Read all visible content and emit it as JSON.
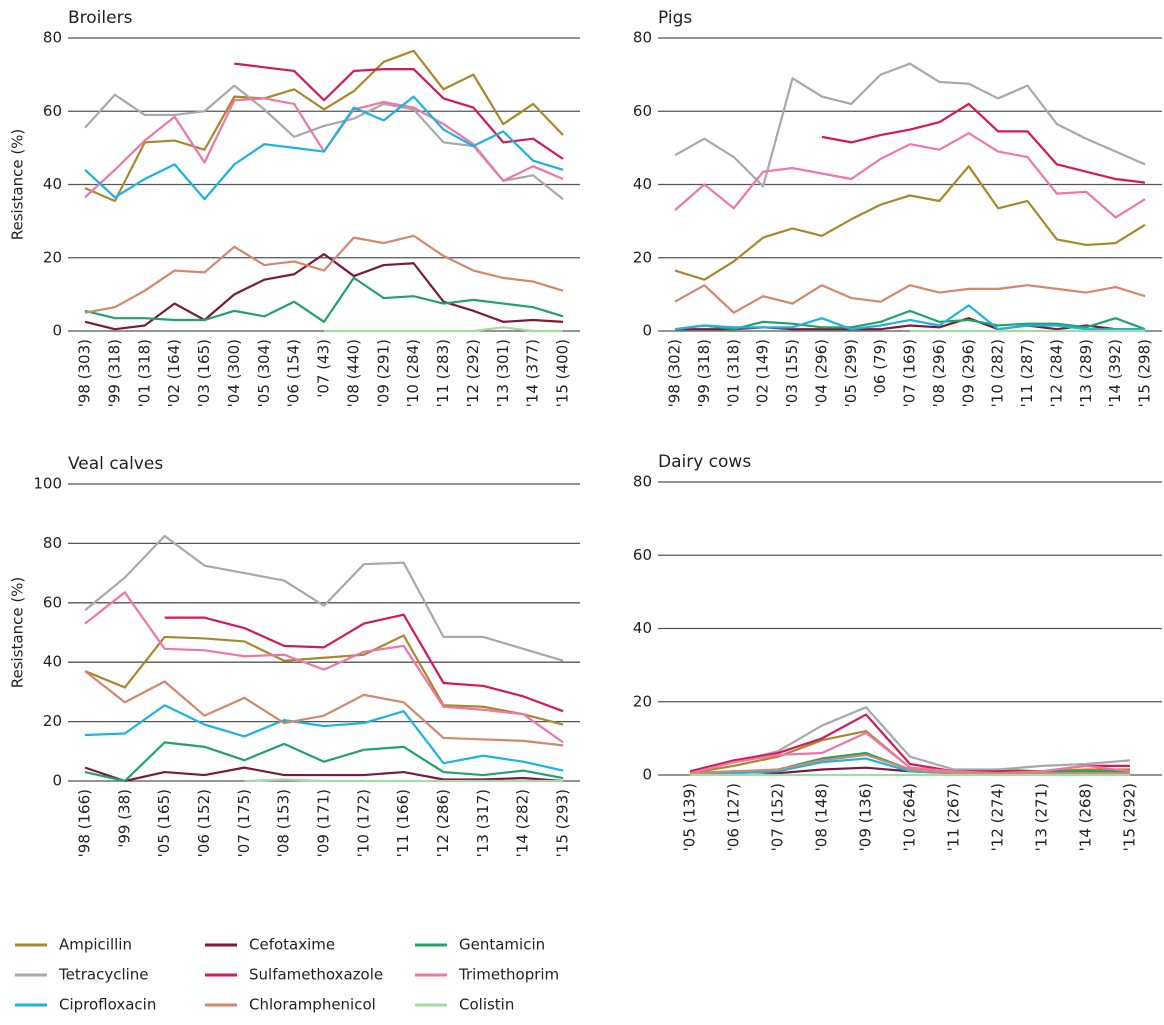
{
  "legend": [
    {
      "name": "Ampicillin",
      "color": "#a7892a"
    },
    {
      "name": "Cefotaxime",
      "color": "#7b1a3a"
    },
    {
      "name": "Gentamicin",
      "color": "#1fa36a"
    },
    {
      "name": "Tetracycline",
      "color": "#a8a8a8"
    },
    {
      "name": "Sulfamethoxazole",
      "color": "#d6175a"
    },
    {
      "name": "Trimethoprim",
      "color": "#f075a8"
    },
    {
      "name": "Ciprofloxacin",
      "color": "#1bb3e0"
    },
    {
      "name": "Chloramphenicol",
      "color": "#d4876f"
    },
    {
      "name": "Colistin",
      "color": "#a8d8a8"
    }
  ],
  "chart_data": [
    {
      "type": "line",
      "title": "Broilers",
      "y_label": "Resistance (%)",
      "grid": true,
      "ylim": [
        0,
        80
      ],
      "yticks": [
        0,
        20,
        40,
        60,
        80
      ],
      "categories": [
        "'98 (303)",
        "'99 (318)",
        "'01 (318)",
        "'02 (164)",
        "'03 (165)",
        "'04 (300)",
        "'05 (304)",
        "'06 (154)",
        "'07 (43)",
        "'08 (440)",
        "'09 (291)",
        "'10 (284)",
        "'11 (283)",
        "'12 (292)",
        "'13 (301)",
        "'14 (377)",
        "'15 (400)"
      ],
      "series": [
        {
          "values": [
            39,
            35.5,
            51.5,
            52,
            49.5,
            64,
            63.5,
            66,
            60.5,
            65.5,
            73.5,
            76.5,
            66,
            70,
            56.5,
            62,
            53.5
          ]
        },
        {
          "values": [
            2.5,
            0.5,
            1.5,
            7.5,
            3,
            10,
            14,
            15.5,
            21,
            15,
            18,
            18.5,
            8,
            5.5,
            2.5,
            3,
            2.5
          ]
        },
        {
          "values": [
            5.5,
            3.5,
            3.5,
            3,
            3,
            5.5,
            4,
            8,
            2.5,
            14.5,
            9,
            9.5,
            7.5,
            8.5,
            7.5,
            6.5,
            4
          ]
        },
        {
          "values": [
            55.5,
            64.5,
            59,
            59,
            60,
            67,
            60.5,
            53,
            56,
            58,
            62,
            60.5,
            51.5,
            50.5,
            41,
            42.5,
            36
          ]
        },
        {
          "values": [
            null,
            null,
            null,
            null,
            null,
            73,
            72,
            71,
            63,
            71,
            71.5,
            71.5,
            63.5,
            61,
            51.5,
            52.5,
            47
          ]
        },
        {
          "values": [
            36.5,
            44,
            52,
            58.5,
            46,
            63,
            63.5,
            62,
            49,
            60.5,
            62.5,
            61,
            56.5,
            51,
            41,
            45,
            41.5
          ]
        },
        {
          "values": [
            44,
            36.5,
            41.5,
            45.5,
            36,
            45.5,
            51,
            50,
            49,
            61,
            57.5,
            64,
            55,
            50.5,
            54.5,
            46.5,
            44
          ]
        },
        {
          "values": [
            5,
            6.5,
            11,
            16.5,
            16,
            23,
            18,
            19,
            16.5,
            25.5,
            24,
            26,
            20.5,
            16.5,
            14.5,
            13.5,
            11
          ]
        },
        {
          "values": [
            null,
            null,
            null,
            null,
            null,
            null,
            null,
            null,
            0,
            0,
            0,
            0,
            0,
            0,
            1,
            0,
            0
          ]
        }
      ]
    },
    {
      "type": "line",
      "title": "Pigs",
      "grid": true,
      "ylim": [
        0,
        80
      ],
      "yticks": [
        0,
        20,
        40,
        60,
        80
      ],
      "categories": [
        "'98 (302)",
        "'99 (318)",
        "'01 (318)",
        "'02 (149)",
        "'03 (155)",
        "'04 (296)",
        "'05 (299)",
        "'06 (79)",
        "'07 (169)",
        "'08 (296)",
        "'09 (296)",
        "'10 (282)",
        "'11 (287)",
        "'12 (284)",
        "'13 (289)",
        "'14 (392)",
        "'15 (298)"
      ],
      "series": [
        {
          "values": [
            16.5,
            14,
            19,
            25.5,
            28,
            26,
            30.5,
            34.5,
            37,
            35.5,
            45,
            33.5,
            35.5,
            25,
            23.5,
            24,
            29
          ]
        },
        {
          "values": [
            0.5,
            0.5,
            0.5,
            1,
            0.5,
            0.5,
            0.5,
            0.5,
            1.5,
            1,
            3.5,
            0.5,
            1.5,
            0.5,
            1.5,
            0.5,
            0.5
          ]
        },
        {
          "values": [
            0.5,
            1.5,
            0.5,
            2.5,
            2,
            1,
            1,
            2.5,
            5.5,
            2.5,
            3,
            1.5,
            2,
            2,
            1,
            3.5,
            0.5
          ]
        },
        {
          "values": [
            48,
            52.5,
            47.5,
            39.5,
            69,
            64,
            62,
            70,
            73,
            68,
            67.5,
            63.5,
            67,
            56.5,
            52.5,
            49,
            45.5
          ]
        },
        {
          "values": [
            null,
            null,
            null,
            null,
            null,
            53,
            51.5,
            53.5,
            55,
            57,
            62,
            54.5,
            54.5,
            45.5,
            43.5,
            41.5,
            40.5
          ]
        },
        {
          "values": [
            33,
            40,
            33.5,
            43.5,
            44.5,
            43,
            41.5,
            47,
            51,
            49.5,
            54,
            49,
            47.5,
            37.5,
            38,
            31,
            36
          ]
        },
        {
          "values": [
            0.5,
            1.5,
            1,
            1,
            1,
            3.5,
            0.5,
            1.5,
            3,
            1.5,
            7,
            0.5,
            1.5,
            1.5,
            0.5,
            0.5,
            0.5
          ]
        },
        {
          "values": [
            8,
            12.5,
            5,
            9.5,
            7.5,
            12.5,
            9,
            8,
            12.5,
            10.5,
            11.5,
            11.5,
            12.5,
            11.5,
            10.5,
            12,
            9.5
          ]
        },
        {
          "values": [
            null,
            null,
            null,
            null,
            null,
            null,
            null,
            null,
            0,
            0,
            0,
            0,
            0,
            0,
            0,
            0,
            0
          ]
        }
      ]
    },
    {
      "type": "line",
      "title": "Veal calves",
      "y_label": "Resistance (%)",
      "grid": true,
      "ylim": [
        0,
        100
      ],
      "yticks": [
        0,
        20,
        40,
        60,
        80,
        100
      ],
      "categories": [
        "'98 (166)",
        "'99 (38)",
        "'05 (165)",
        "'06 (152)",
        "'07 (175)",
        "'08 (153)",
        "'09 (171)",
        "'10 (172)",
        "'11 (166)",
        "'12 (286)",
        "'13 (317)",
        "'14 (282)",
        "'15 (293)"
      ],
      "series": [
        {
          "values": [
            37,
            31.5,
            48.5,
            48,
            47,
            40.5,
            41.5,
            42.5,
            49,
            25.5,
            25,
            22.5,
            19
          ]
        },
        {
          "values": [
            4.5,
            0,
            3,
            2,
            4.5,
            2,
            2,
            2,
            3,
            0.5,
            0.5,
            1,
            0
          ]
        },
        {
          "values": [
            3,
            0,
            13,
            11.5,
            7,
            12.5,
            6.5,
            10.5,
            11.5,
            3,
            2,
            3.5,
            1
          ]
        },
        {
          "values": [
            57.5,
            68.5,
            82.5,
            72.5,
            70,
            67.5,
            59,
            73,
            73.5,
            48.5,
            48.5,
            44.5,
            40.5
          ]
        },
        {
          "values": [
            null,
            null,
            55,
            55,
            51.5,
            45.5,
            45,
            53,
            56,
            33,
            32,
            28.5,
            23.5
          ]
        },
        {
          "values": [
            53,
            63.5,
            44.5,
            44,
            42,
            42.5,
            37.5,
            43.5,
            45.5,
            25,
            24,
            22.5,
            13
          ]
        },
        {
          "values": [
            15.5,
            16,
            25.5,
            19,
            15,
            20.5,
            18.5,
            19.5,
            23.5,
            6,
            8.5,
            6.5,
            3.5
          ]
        },
        {
          "values": [
            37,
            26.5,
            33.5,
            22,
            28,
            19.5,
            22,
            29,
            26.5,
            14.5,
            14,
            13.5,
            12
          ]
        },
        {
          "values": [
            null,
            null,
            null,
            null,
            0,
            0.5,
            0,
            0,
            0,
            0,
            0,
            0,
            0
          ]
        }
      ]
    },
    {
      "type": "line",
      "title": "Dairy cows",
      "grid": true,
      "ylim": [
        0,
        80
      ],
      "yticks": [
        0,
        20,
        40,
        60,
        80
      ],
      "categories": [
        "'05 (139)",
        "'06 (127)",
        "'07 (152)",
        "'08 (148)",
        "'09 (136)",
        "'10 (264)",
        "'11 (267)",
        "'12 (274)",
        "'13 (271)",
        "'14 (268)",
        "'15 (292)"
      ],
      "series": [
        {
          "values": [
            0.5,
            2.5,
            5,
            9.5,
            12,
            2,
            1,
            1.5,
            1,
            1.5,
            1.5
          ]
        },
        {
          "values": [
            0.5,
            1,
            0.5,
            1.5,
            2,
            1,
            0.5,
            0.5,
            0.5,
            0.5,
            0.5
          ]
        },
        {
          "values": [
            0.5,
            0.5,
            1.5,
            4.5,
            6,
            1.5,
            0.5,
            1,
            1,
            1,
            1
          ]
        },
        {
          "values": [
            1,
            3.5,
            6.5,
            13.5,
            18.5,
            5,
            1.5,
            1.5,
            2.5,
            3,
            4
          ]
        },
        {
          "values": [
            1,
            4,
            6,
            10,
            16.5,
            3,
            1,
            1,
            1,
            2.5,
            2.5
          ]
        },
        {
          "values": [
            0.5,
            3.5,
            5.5,
            6,
            11.5,
            2,
            1,
            0.5,
            1,
            2.5,
            1
          ]
        },
        {
          "values": [
            0.5,
            0.5,
            1,
            3.5,
            4.5,
            1,
            0.5,
            0.5,
            0.5,
            0.5,
            0.5
          ]
        },
        {
          "values": [
            0.5,
            1,
            1.5,
            4,
            5.5,
            1.5,
            0.5,
            0.5,
            0.5,
            0.5,
            0.5
          ]
        },
        {
          "values": [
            0,
            0,
            0,
            0,
            0,
            0,
            0,
            0,
            0,
            0,
            0
          ]
        }
      ]
    }
  ]
}
